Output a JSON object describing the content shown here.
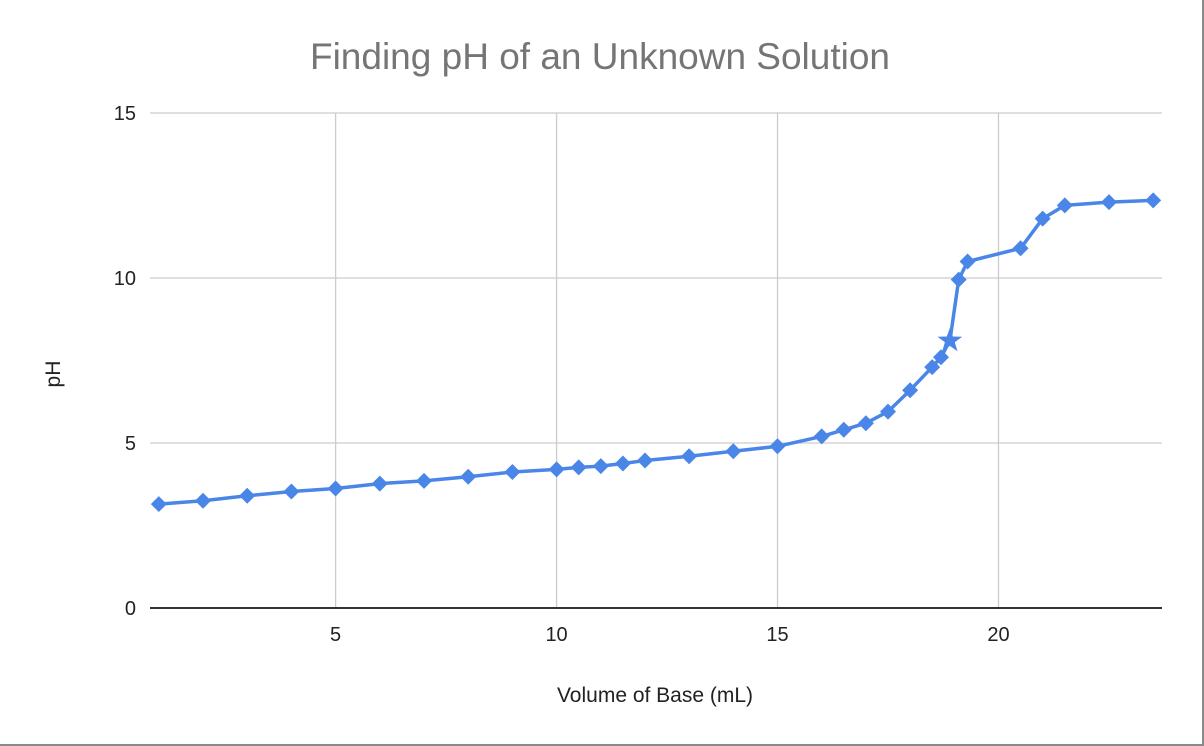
{
  "chart_data": {
    "type": "line",
    "title": "Finding pH of an Unknown Solution",
    "xlabel": "Volume of Base (mL)",
    "ylabel": "pH",
    "xlim": [
      0.8,
      23.7
    ],
    "ylim": [
      0,
      15
    ],
    "x_ticks": [
      5,
      10,
      15,
      20
    ],
    "y_ticks": [
      0,
      5,
      10,
      15
    ],
    "grid": true,
    "legend": "none",
    "colors": {
      "series": "#4a86e8",
      "grid": "#cccccc",
      "baseline": "#333333"
    },
    "marker": "diamond",
    "series": [
      {
        "x": [
          1,
          2,
          3,
          4,
          5,
          6,
          7,
          8,
          9,
          10,
          10.5,
          11,
          11.5,
          12,
          13,
          14,
          15,
          16,
          16.5,
          17,
          17.5,
          18,
          18.5,
          18.7,
          18.9,
          19.1,
          19.3,
          20.5,
          21,
          21.5,
          22.5,
          23.5
        ],
        "values": [
          3.15,
          3.25,
          3.4,
          3.53,
          3.62,
          3.77,
          3.85,
          3.98,
          4.12,
          4.2,
          4.26,
          4.3,
          4.38,
          4.47,
          4.6,
          4.75,
          4.9,
          5.2,
          5.4,
          5.6,
          5.95,
          6.6,
          7.3,
          7.6,
          8.1,
          9.95,
          10.5,
          10.9,
          11.8,
          12.2,
          12.3,
          12.35
        ]
      }
    ],
    "annotations": [
      {
        "marker": "star",
        "x": 18.9,
        "y": 8.1
      }
    ]
  }
}
